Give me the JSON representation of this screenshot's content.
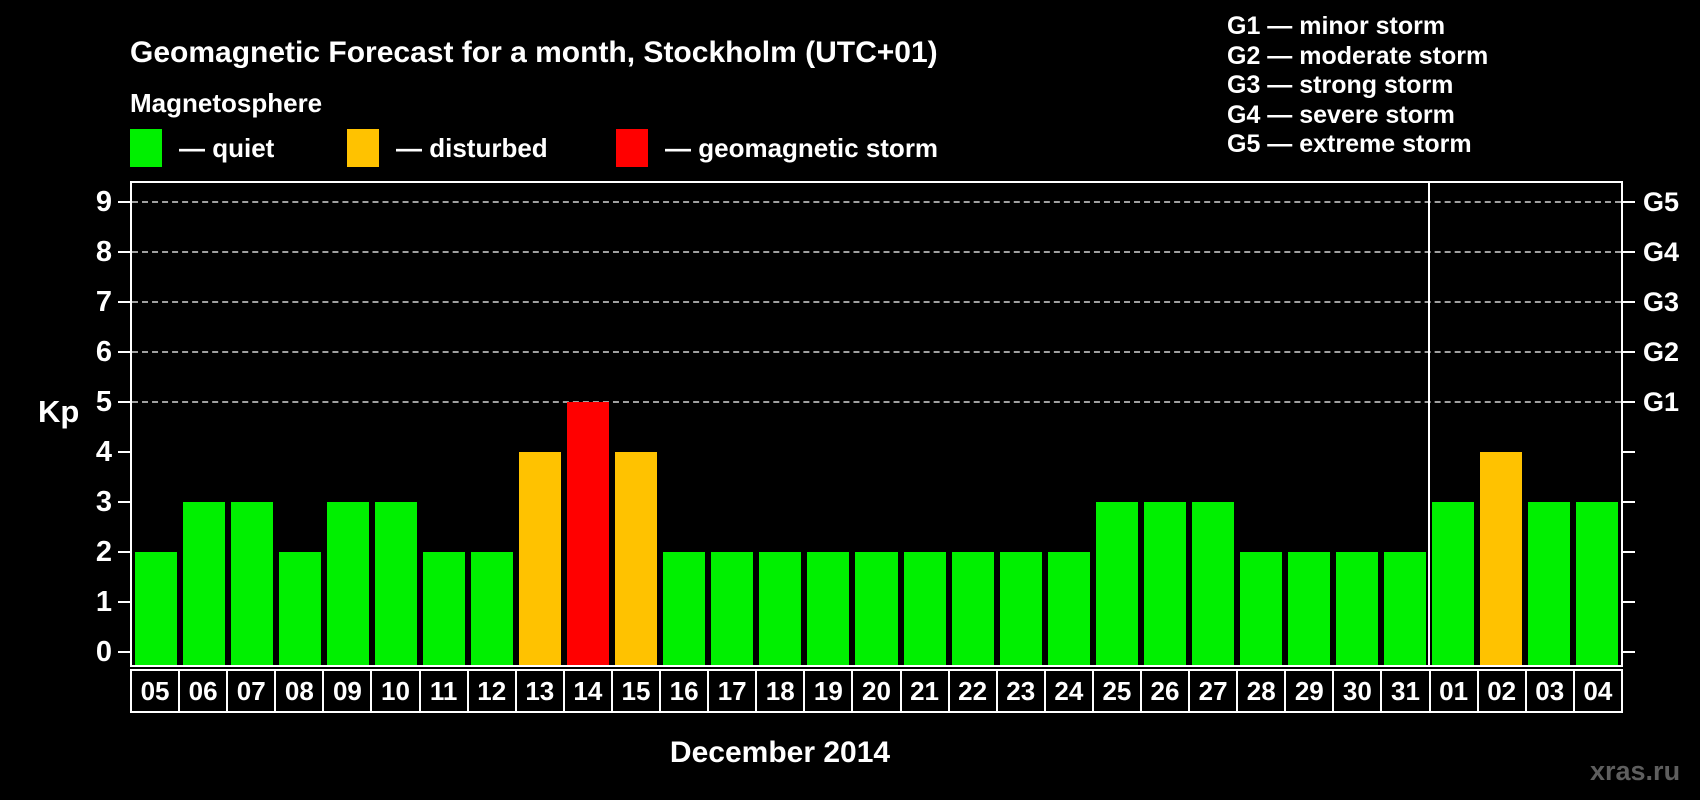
{
  "header": {
    "title": "Geomagnetic Forecast for a month, Stockholm (UTC+01)",
    "subtitle": "Magnetosphere"
  },
  "legend": {
    "items": [
      {
        "key": "quiet",
        "label": "— quiet",
        "color": "#00f000"
      },
      {
        "key": "disturbed",
        "label": "— disturbed",
        "color": "#ffc200"
      },
      {
        "key": "storm",
        "label": "— geomagnetic storm",
        "color": "#ff0000"
      }
    ]
  },
  "g_legend": {
    "items": [
      "G1 — minor storm",
      "G2 — moderate storm",
      "G3 — strong storm",
      "G4 — severe storm",
      "G5 — extreme storm"
    ]
  },
  "watermark": "xras.ru",
  "chart_data": {
    "type": "bar",
    "title": "Geomagnetic Forecast for a month, Stockholm (UTC+01)",
    "xlabel": "December 2014",
    "ylabel": "Kp",
    "ylim": [
      -0.26,
      9.38
    ],
    "grid": "dashed horizontal at Kp 5-9",
    "y_ticks": [
      0,
      1,
      2,
      3,
      4,
      5,
      6,
      7,
      8,
      9
    ],
    "grid_levels": [
      5,
      6,
      7,
      8,
      9
    ],
    "right_axis_labels": [
      {
        "value": 5,
        "label": "G1"
      },
      {
        "value": 6,
        "label": "G2"
      },
      {
        "value": 7,
        "label": "G3"
      },
      {
        "value": 8,
        "label": "G4"
      },
      {
        "value": 9,
        "label": "G5"
      }
    ],
    "categories": [
      "05",
      "06",
      "07",
      "08",
      "09",
      "10",
      "11",
      "12",
      "13",
      "14",
      "15",
      "16",
      "17",
      "18",
      "19",
      "20",
      "21",
      "22",
      "23",
      "24",
      "25",
      "26",
      "27",
      "28",
      "29",
      "30",
      "31",
      "01",
      "02",
      "03",
      "04"
    ],
    "values": [
      2,
      3,
      3,
      2,
      3,
      3,
      2,
      2,
      4,
      5,
      4,
      2,
      2,
      2,
      2,
      2,
      2,
      2,
      2,
      2,
      3,
      3,
      3,
      2,
      2,
      2,
      2,
      3,
      4,
      3,
      3
    ],
    "statuses": [
      "quiet",
      "quiet",
      "quiet",
      "quiet",
      "quiet",
      "quiet",
      "quiet",
      "quiet",
      "disturbed",
      "storm",
      "disturbed",
      "quiet",
      "quiet",
      "quiet",
      "quiet",
      "quiet",
      "quiet",
      "quiet",
      "quiet",
      "quiet",
      "quiet",
      "quiet",
      "quiet",
      "quiet",
      "quiet",
      "quiet",
      "quiet",
      "quiet",
      "disturbed",
      "quiet",
      "quiet"
    ],
    "month_separator_after_index": 26,
    "status_colors": {
      "quiet": "#00f000",
      "disturbed": "#ffc200",
      "storm": "#ff0000"
    },
    "axis_color": "#ffffff",
    "grid_color": "#a0a0a0",
    "background": "#000000"
  }
}
